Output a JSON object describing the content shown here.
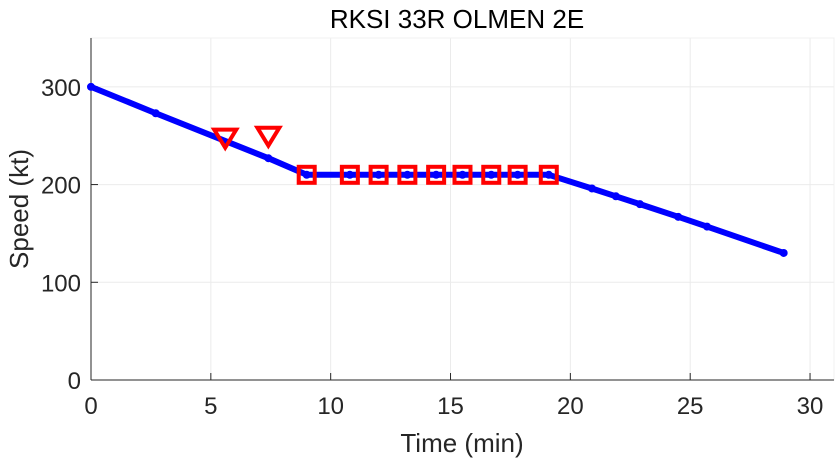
{
  "chart_data": {
    "type": "line",
    "title": "RKSI 33R OLMEN 2E",
    "xlabel": "Time (min)",
    "ylabel": "Speed (kt)",
    "xlim": [
      0,
      31
    ],
    "ylim": [
      0,
      350
    ],
    "xticks": [
      0,
      5,
      10,
      15,
      20,
      25,
      30
    ],
    "yticks": [
      0,
      100,
      200,
      300
    ],
    "grid": true,
    "colors": {
      "line": "#0000ff",
      "marker": "#ff0000",
      "axis": "#262626",
      "grid": "#ebebeb"
    },
    "series": [
      {
        "marker": "dot",
        "x": [
          0,
          2.7,
          7.4,
          9.0,
          10.8,
          12.0,
          13.2,
          14.4,
          15.5,
          16.7,
          17.8,
          19.1,
          20.9,
          21.9,
          22.9,
          24.5,
          25.7,
          28.9
        ],
        "y": [
          300,
          273,
          227,
          210,
          210,
          210,
          210,
          210,
          210,
          210,
          210,
          210,
          196,
          188,
          180,
          167,
          157,
          130
        ]
      },
      {
        "marker": "square",
        "x": [
          9.0,
          10.8,
          12.0,
          13.2,
          14.4,
          15.5,
          16.7,
          17.8,
          19.1
        ],
        "y": [
          210,
          210,
          210,
          210,
          210,
          210,
          210,
          210,
          210
        ]
      },
      {
        "marker": "triangle-down",
        "x": [
          5.6,
          7.4
        ],
        "y": [
          247,
          249
        ]
      }
    ]
  }
}
